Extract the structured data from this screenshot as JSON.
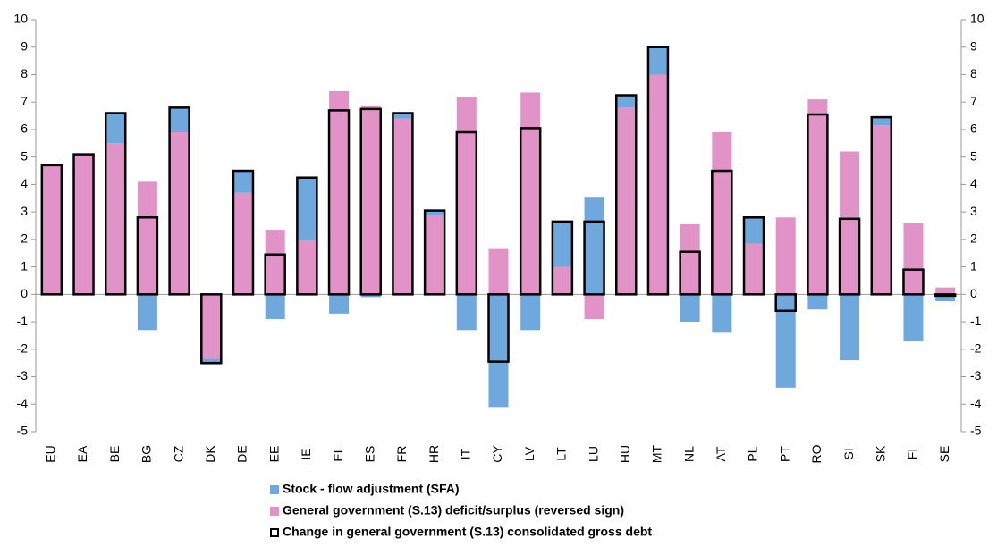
{
  "chart_data": {
    "type": "stacked-bar",
    "categories": [
      "EU",
      "EA",
      "BE",
      "BG",
      "CZ",
      "DK",
      "DE",
      "EE",
      "IE",
      "EL",
      "ES",
      "FR",
      "HR",
      "IT",
      "CY",
      "LV",
      "LT",
      "LU",
      "HU",
      "MT",
      "NL",
      "AT",
      "PL",
      "PT",
      "RO",
      "SI",
      "SK",
      "FI",
      "SE"
    ],
    "series": [
      {
        "name": "Stock - flow adjustment (SFA)",
        "color": "#6fa8dc",
        "style": "bar",
        "values": [
          0,
          0,
          1.1,
          -1.3,
          0.9,
          -0.2,
          0.8,
          -0.9,
          2.3,
          -0.7,
          -0.1,
          0.2,
          0.15,
          -1.3,
          -4.1,
          -1.3,
          1.65,
          3.55,
          0.45,
          1.0,
          -1.0,
          -1.4,
          0.95,
          -3.4,
          -0.55,
          -2.4,
          0.3,
          -1.7,
          -0.25
        ]
      },
      {
        "name": "General government (S.13) deficit/surplus (reversed sign)",
        "color": "#e193c8",
        "style": "bar",
        "values": [
          4.7,
          5.1,
          5.5,
          4.1,
          5.9,
          -2.35,
          3.7,
          2.35,
          1.95,
          7.4,
          6.85,
          6.4,
          2.9,
          7.2,
          1.65,
          7.35,
          1.0,
          -0.9,
          6.8,
          8.0,
          2.55,
          5.9,
          1.85,
          2.8,
          7.1,
          5.2,
          6.15,
          2.6,
          0.25
        ]
      },
      {
        "name": "Change in general government (S.13) consolidated gross debt",
        "color": "#000000",
        "style": "outline",
        "values": [
          4.7,
          5.1,
          6.6,
          2.8,
          6.8,
          -2.5,
          4.5,
          1.45,
          4.25,
          6.7,
          6.75,
          6.6,
          3.05,
          5.9,
          -2.45,
          6.05,
          2.65,
          2.65,
          7.25,
          9.0,
          1.55,
          4.5,
          2.8,
          -0.6,
          6.55,
          2.75,
          6.45,
          0.9,
          -0.05
        ]
      }
    ],
    "ylim": [
      -5,
      10
    ],
    "yticks": [
      -5,
      -4,
      -3,
      -2,
      -1,
      0,
      1,
      2,
      3,
      4,
      5,
      6,
      7,
      8,
      9,
      10
    ],
    "y2lim": [
      -5,
      10
    ],
    "y2ticks": [
      -5,
      -4,
      -3,
      -2,
      -1,
      0,
      1,
      2,
      3,
      4,
      5,
      6,
      7,
      8,
      9,
      10
    ],
    "grid": false
  }
}
